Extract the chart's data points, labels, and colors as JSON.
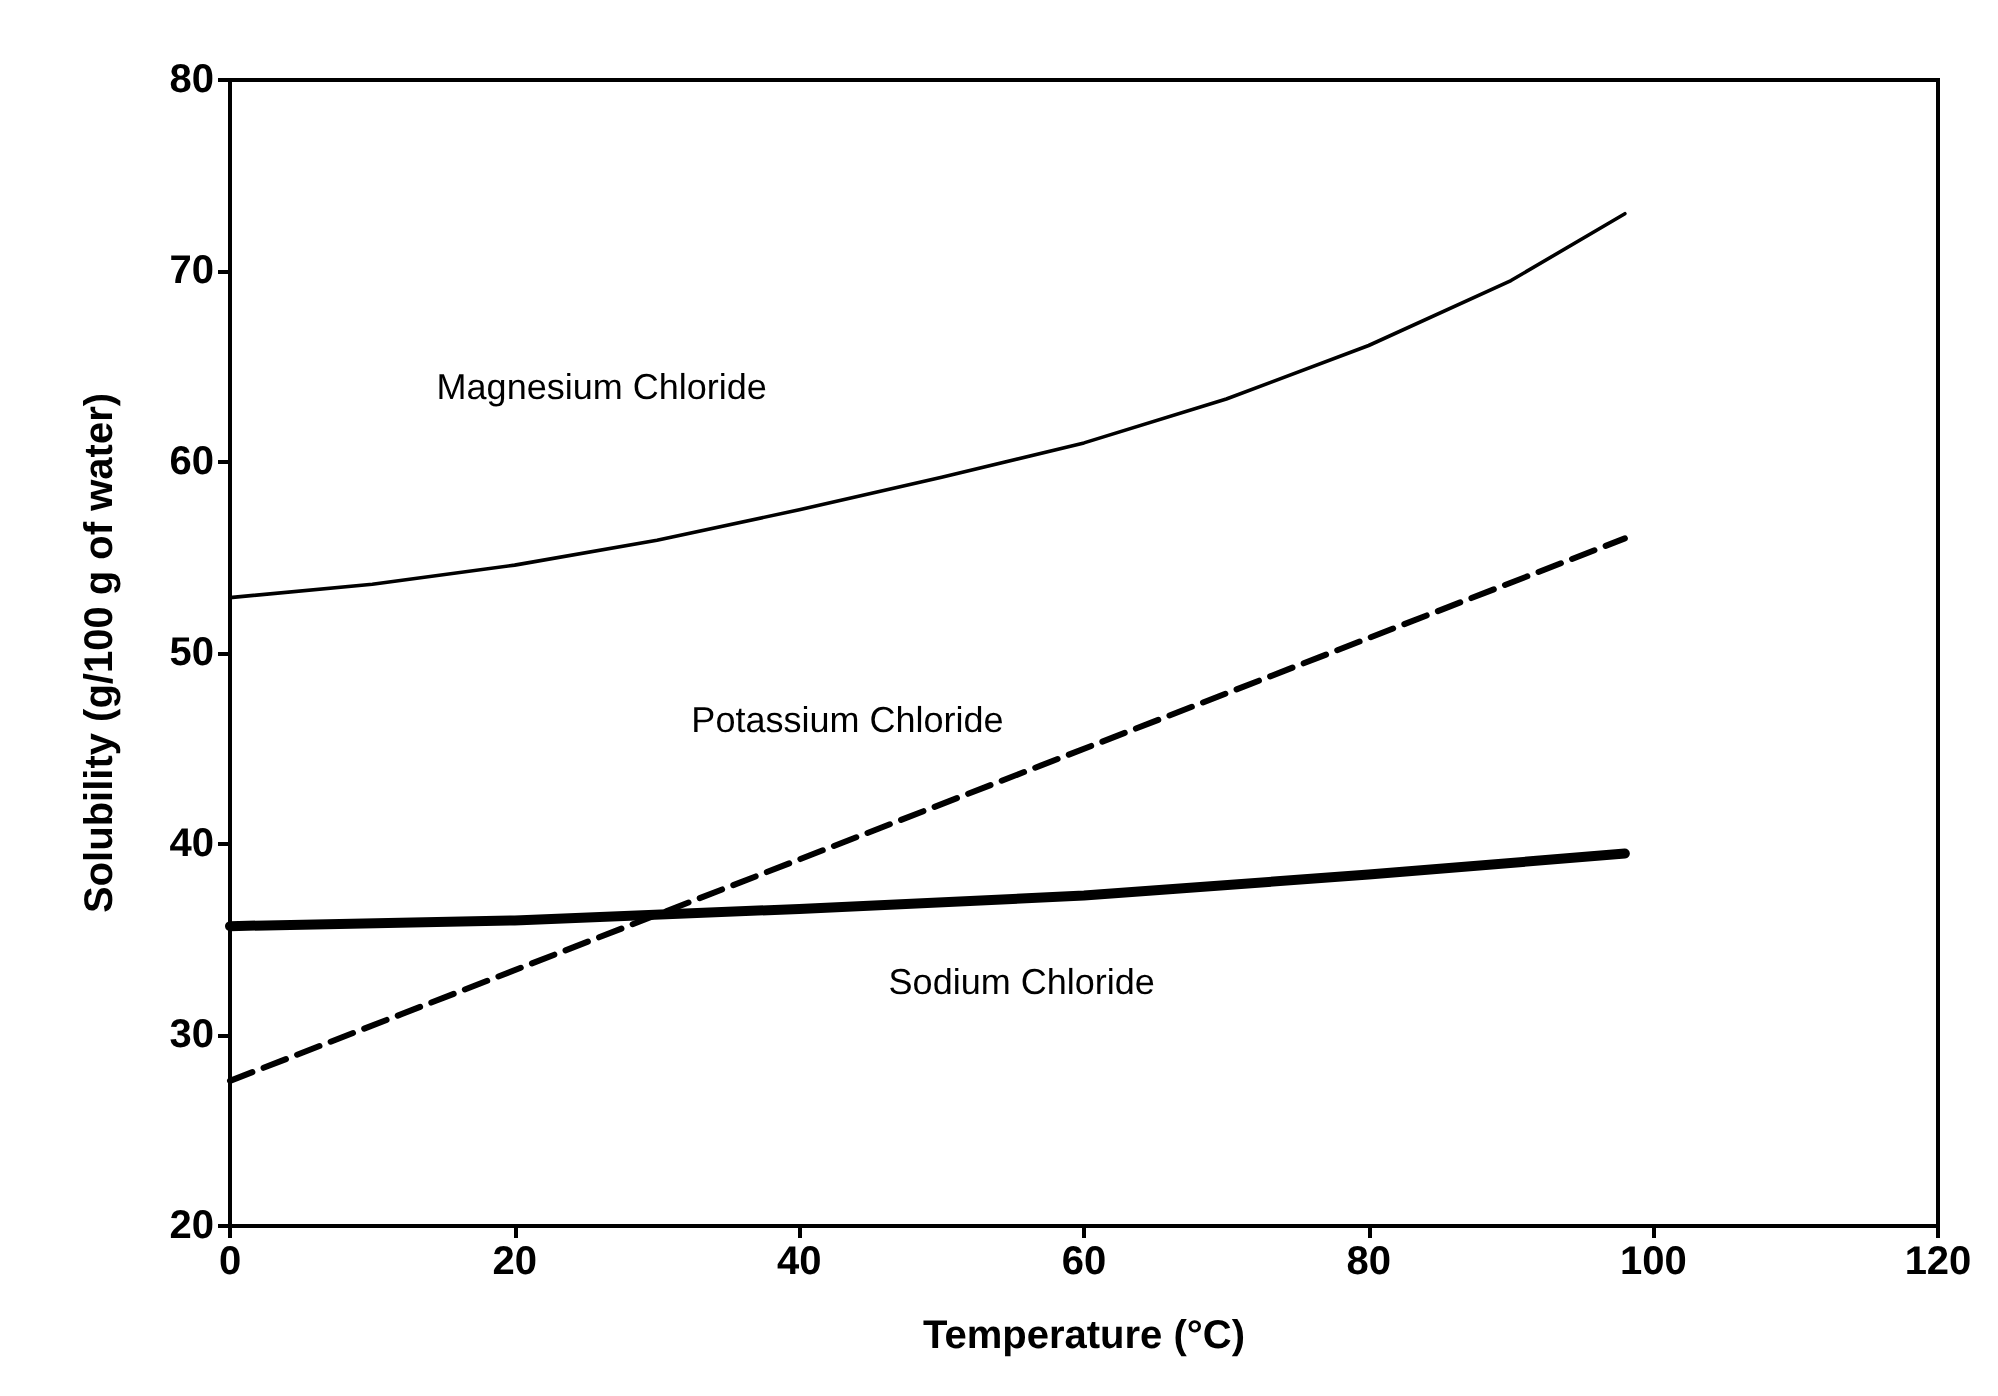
{
  "chart_data": {
    "type": "line",
    "xlabel": "Temperature (°C)",
    "ylabel": "Solubility (g/100 g of water)",
    "xlim": [
      0,
      120
    ],
    "xticks": [
      0,
      20,
      40,
      60,
      80,
      100,
      120
    ],
    "ylim": [
      20,
      80
    ],
    "yticks": [
      20,
      30,
      40,
      50,
      60,
      70,
      80
    ],
    "grid": false,
    "marker": "none",
    "series": [
      {
        "name": "Magnesium Chloride",
        "color": "#000000",
        "line_style": "solid",
        "x": [
          0,
          10,
          20,
          30,
          40,
          50,
          60,
          70,
          80,
          90,
          98
        ],
        "values": [
          52.9,
          53.6,
          54.6,
          55.9,
          57.5,
          59.2,
          61,
          63.3,
          66.1,
          69.5,
          73
        ]
      },
      {
        "name": "Potassium Chloride",
        "color": "#000000",
        "line_style": "dashed",
        "x": [
          0,
          98
        ],
        "values": [
          27.6,
          56
        ]
      },
      {
        "name": "Sodium Chloride",
        "color": "#000000",
        "line_style": "solid",
        "x": [
          0,
          20,
          40,
          60,
          80,
          98
        ],
        "values": [
          35.7,
          36,
          36.6,
          37.3,
          38.4,
          39.5
        ]
      }
    ]
  }
}
